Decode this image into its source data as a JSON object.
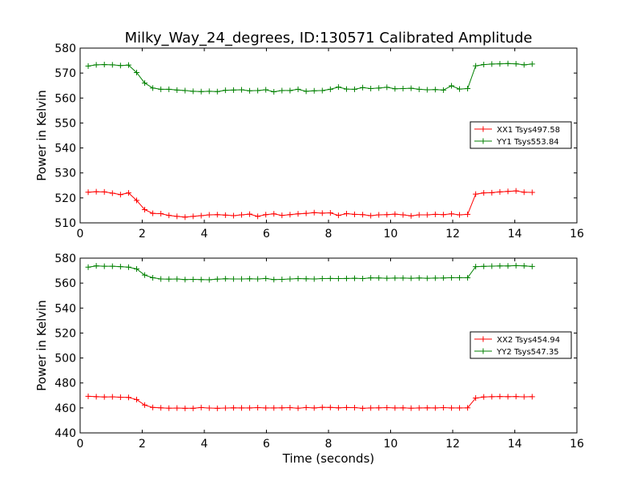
{
  "figure": {
    "title": "Milky_Way_24_degrees, ID:130571 Calibrated Amplitude"
  },
  "chart_data": [
    {
      "type": "line",
      "title": "Milky_Way_24_degrees, ID:130571 Calibrated Amplitude",
      "xlabel": "",
      "ylabel": "Power in Kelvin",
      "xlim": [
        0,
        16
      ],
      "ylim": [
        510,
        580
      ],
      "xticks": [
        0,
        2,
        4,
        6,
        8,
        10,
        12,
        14,
        16
      ],
      "yticks": [
        510,
        520,
        530,
        540,
        550,
        560,
        570,
        580
      ],
      "grid": false,
      "legend": "center-right",
      "x": [
        0.26,
        0.52,
        0.78,
        1.04,
        1.3,
        1.56,
        1.82,
        2.08,
        2.34,
        2.6,
        2.86,
        3.12,
        3.38,
        3.64,
        3.9,
        4.16,
        4.42,
        4.68,
        4.94,
        5.2,
        5.46,
        5.72,
        5.98,
        6.24,
        6.5,
        6.76,
        7.02,
        7.28,
        7.54,
        7.8,
        8.06,
        8.32,
        8.58,
        8.84,
        9.1,
        9.36,
        9.62,
        9.88,
        10.14,
        10.4,
        10.66,
        10.92,
        11.18,
        11.44,
        11.7,
        11.96,
        12.22,
        12.48,
        12.74,
        13.0,
        13.26,
        13.52,
        13.78,
        14.04,
        14.3,
        14.56
      ],
      "series": [
        {
          "name": "XX1 Tsys497.58",
          "color": "#ff0000",
          "values": [
            522.3,
            522.5,
            522.4,
            521.9,
            521.3,
            522.0,
            519.0,
            515.3,
            513.8,
            513.7,
            513.0,
            512.6,
            512.3,
            512.6,
            512.9,
            513.2,
            513.3,
            513.1,
            512.9,
            513.2,
            513.5,
            512.6,
            513.3,
            513.6,
            513.0,
            513.3,
            513.6,
            513.8,
            514.1,
            513.9,
            514.0,
            513.0,
            513.7,
            513.4,
            513.3,
            512.9,
            513.2,
            513.3,
            513.5,
            513.2,
            512.8,
            513.2,
            513.2,
            513.4,
            513.3,
            513.6,
            513.2,
            513.4,
            521.5,
            522.0,
            522.1,
            522.4,
            522.6,
            522.8,
            522.3,
            522.2
          ]
        },
        {
          "name": "YY1 Tsys553.84",
          "color": "#008000",
          "values": [
            572.8,
            573.3,
            573.4,
            573.3,
            573.0,
            573.2,
            570.2,
            566.0,
            564.0,
            563.5,
            563.5,
            563.2,
            563.0,
            562.7,
            562.6,
            562.7,
            562.6,
            563.1,
            563.2,
            563.3,
            562.9,
            563.0,
            563.3,
            562.5,
            563.0,
            563.0,
            563.5,
            562.7,
            562.9,
            563.0,
            563.5,
            564.4,
            563.6,
            563.5,
            564.2,
            563.8,
            564.0,
            564.3,
            563.7,
            563.8,
            563.9,
            563.5,
            563.3,
            563.4,
            563.2,
            564.9,
            563.6,
            563.8,
            572.9,
            573.4,
            573.6,
            573.7,
            573.8,
            573.7,
            573.3,
            573.6
          ]
        }
      ]
    },
    {
      "type": "line",
      "title": "",
      "xlabel": "Time (seconds)",
      "ylabel": "Power in Kelvin",
      "xlim": [
        0,
        16
      ],
      "ylim": [
        440,
        580
      ],
      "xticks": [
        0,
        2,
        4,
        6,
        8,
        10,
        12,
        14,
        16
      ],
      "yticks": [
        440,
        460,
        480,
        500,
        520,
        540,
        560,
        580
      ],
      "grid": false,
      "legend": "center-right",
      "x": [
        0.26,
        0.52,
        0.78,
        1.04,
        1.3,
        1.56,
        1.82,
        2.08,
        2.34,
        2.6,
        2.86,
        3.12,
        3.38,
        3.64,
        3.9,
        4.16,
        4.42,
        4.68,
        4.94,
        5.2,
        5.46,
        5.72,
        5.98,
        6.24,
        6.5,
        6.76,
        7.02,
        7.28,
        7.54,
        7.8,
        8.06,
        8.32,
        8.58,
        8.84,
        9.1,
        9.36,
        9.62,
        9.88,
        10.14,
        10.4,
        10.66,
        10.92,
        11.18,
        11.44,
        11.7,
        11.96,
        12.22,
        12.48,
        12.74,
        13.0,
        13.26,
        13.52,
        13.78,
        14.04,
        14.3,
        14.56
      ],
      "series": [
        {
          "name": "XX2 Tsys454.94",
          "color": "#ff0000",
          "values": [
            469.3,
            469.0,
            468.8,
            468.9,
            468.6,
            468.4,
            466.7,
            462.3,
            460.4,
            460.1,
            459.8,
            459.9,
            459.7,
            459.7,
            460.3,
            459.9,
            459.7,
            459.9,
            460.1,
            460.0,
            460.0,
            460.2,
            460.0,
            460.0,
            460.1,
            460.2,
            459.8,
            460.3,
            460.0,
            460.5,
            460.4,
            460.1,
            460.3,
            460.2,
            459.7,
            460.0,
            460.1,
            460.2,
            460.0,
            460.1,
            459.8,
            460.0,
            460.1,
            460.0,
            460.2,
            460.0,
            460.0,
            460.1,
            467.9,
            468.8,
            469.0,
            469.1,
            469.0,
            469.1,
            468.9,
            469.0
          ]
        },
        {
          "name": "YY2 Tsys547.35",
          "color": "#008000",
          "values": [
            572.8,
            573.8,
            573.5,
            573.5,
            573.2,
            572.8,
            571.3,
            566.4,
            564.3,
            563.3,
            563.2,
            563.3,
            562.8,
            563.0,
            562.8,
            562.7,
            563.2,
            563.5,
            563.3,
            563.3,
            563.5,
            563.3,
            563.7,
            562.8,
            563.0,
            563.3,
            563.6,
            563.5,
            563.3,
            563.6,
            563.7,
            563.6,
            563.7,
            563.9,
            563.6,
            564.2,
            564.1,
            563.9,
            564.0,
            564.0,
            563.9,
            564.1,
            563.9,
            564.0,
            564.1,
            564.3,
            564.3,
            564.3,
            573.2,
            573.4,
            573.6,
            573.7,
            573.7,
            574.0,
            573.8,
            573.3
          ]
        }
      ]
    }
  ]
}
